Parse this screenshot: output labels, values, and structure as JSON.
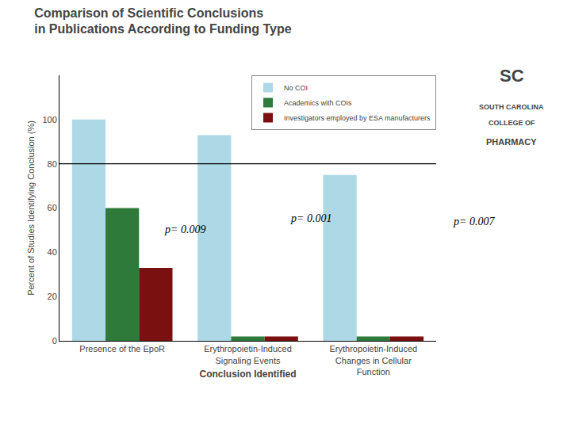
{
  "chart_data": {
    "type": "bar",
    "title": "Comparison of Scientific Conclusions\nin Publications According to Funding Type",
    "categories": [
      "Presence of the EpoR",
      "Erythropoietin-Induced\nSignaling Events",
      "Erythropoietin-Induced\nChanges in Cellular\nFunction"
    ],
    "xlabel": "Conclusion Identified",
    "ylabel": "Percent of Studies Identifying Conclusion (%)",
    "series": [
      {
        "name": "No COI",
        "color": "#ADD8E6",
        "values": [
          100,
          93,
          75
        ]
      },
      {
        "name": "Academics with COIs",
        "color": "#2D7A3A",
        "values": [
          60,
          2,
          2
        ]
      },
      {
        "name": "Investigators employed by ESA manufacturers",
        "color": "#7B1010",
        "values": [
          33,
          2,
          2
        ]
      }
    ],
    "ylim": [
      0,
      120
    ],
    "yticks": [
      0,
      20,
      40,
      60,
      80,
      100
    ],
    "reference_line": 80,
    "annotations": [
      {
        "text": "p= 0.009"
      },
      {
        "text": "p= 0.001"
      },
      {
        "text": "p= 0.007"
      }
    ],
    "logo_texts": [
      "SC",
      "SOUTH CAROLINA",
      "COLLEGE OF",
      "PHARMACY"
    ],
    "legend": "upper right",
    "grid": false
  }
}
